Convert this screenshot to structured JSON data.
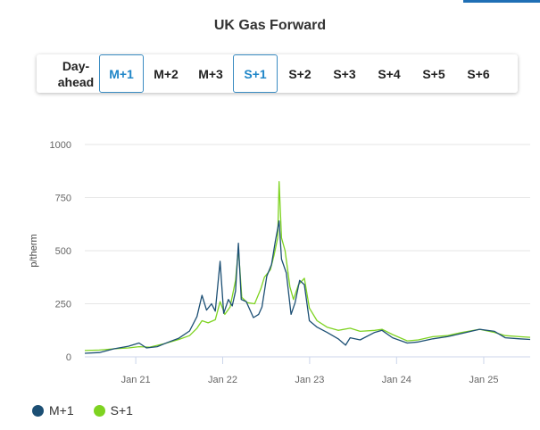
{
  "title": "UK Gas Forward",
  "tabs": [
    {
      "id": "day",
      "label": "Day-ahead",
      "active": false
    },
    {
      "id": "m1",
      "label": "M+1",
      "active": true
    },
    {
      "id": "m2",
      "label": "M+2",
      "active": false
    },
    {
      "id": "m3",
      "label": "M+3",
      "active": false
    },
    {
      "id": "s1",
      "label": "S+1",
      "active": true
    },
    {
      "id": "s2",
      "label": "S+2",
      "active": false
    },
    {
      "id": "s3",
      "label": "S+3",
      "active": false
    },
    {
      "id": "s4",
      "label": "S+4",
      "active": false
    },
    {
      "id": "s5",
      "label": "S+5",
      "active": false
    },
    {
      "id": "s6",
      "label": "S+6",
      "active": false
    }
  ],
  "colors": {
    "accent": "#1f86c8",
    "m1": "#1c4f74",
    "s1": "#7ed321"
  },
  "chart_data": {
    "type": "line",
    "title": "UK Gas Forward",
    "ylabel": "p/therm",
    "xlabel": "",
    "ylim": [
      0,
      1000
    ],
    "yticks": [
      0,
      250,
      500,
      750,
      1000
    ],
    "xlim": [
      "2020-06-01",
      "2025-07-15"
    ],
    "xticks": [
      {
        "date": "2021-01-01",
        "label": "Jan 21"
      },
      {
        "date": "2022-01-01",
        "label": "Jan 22"
      },
      {
        "date": "2023-01-01",
        "label": "Jan 23"
      },
      {
        "date": "2024-01-01",
        "label": "Jan 24"
      },
      {
        "date": "2025-01-01",
        "label": "Jan 25"
      }
    ],
    "grid": true,
    "legend": "bottom-left",
    "series": [
      {
        "name": "M+1",
        "color": "#1c4f74",
        "points": [
          [
            "2020-06-01",
            17
          ],
          [
            "2020-08-01",
            20
          ],
          [
            "2020-10-01",
            38
          ],
          [
            "2020-12-01",
            50
          ],
          [
            "2021-01-15",
            65
          ],
          [
            "2021-02-15",
            42
          ],
          [
            "2021-04-01",
            48
          ],
          [
            "2021-05-15",
            68
          ],
          [
            "2021-07-01",
            88
          ],
          [
            "2021-08-15",
            122
          ],
          [
            "2021-09-15",
            190
          ],
          [
            "2021-10-06",
            290
          ],
          [
            "2021-10-25",
            220
          ],
          [
            "2021-11-15",
            250
          ],
          [
            "2021-12-01",
            215
          ],
          [
            "2021-12-21",
            450
          ],
          [
            "2022-01-05",
            205
          ],
          [
            "2022-01-25",
            270
          ],
          [
            "2022-02-10",
            240
          ],
          [
            "2022-02-24",
            310
          ],
          [
            "2022-03-08",
            535
          ],
          [
            "2022-03-20",
            270
          ],
          [
            "2022-04-10",
            260
          ],
          [
            "2022-05-10",
            185
          ],
          [
            "2022-06-01",
            200
          ],
          [
            "2022-06-15",
            235
          ],
          [
            "2022-07-05",
            380
          ],
          [
            "2022-07-25",
            435
          ],
          [
            "2022-08-10",
            545
          ],
          [
            "2022-08-26",
            640
          ],
          [
            "2022-09-05",
            460
          ],
          [
            "2022-09-25",
            395
          ],
          [
            "2022-10-15",
            200
          ],
          [
            "2022-11-01",
            255
          ],
          [
            "2022-11-20",
            360
          ],
          [
            "2022-12-10",
            340
          ],
          [
            "2022-12-31",
            170
          ],
          [
            "2023-02-01",
            140
          ],
          [
            "2023-03-15",
            115
          ],
          [
            "2023-05-01",
            85
          ],
          [
            "2023-06-01",
            55
          ],
          [
            "2023-06-20",
            90
          ],
          [
            "2023-08-01",
            80
          ],
          [
            "2023-10-01",
            115
          ],
          [
            "2023-11-01",
            125
          ],
          [
            "2023-12-15",
            90
          ],
          [
            "2024-02-15",
            65
          ],
          [
            "2024-04-01",
            70
          ],
          [
            "2024-06-01",
            85
          ],
          [
            "2024-08-01",
            95
          ],
          [
            "2024-10-01",
            110
          ],
          [
            "2024-12-15",
            130
          ],
          [
            "2025-02-15",
            120
          ],
          [
            "2025-04-01",
            90
          ],
          [
            "2025-06-01",
            85
          ],
          [
            "2025-07-15",
            82
          ]
        ]
      },
      {
        "name": "S+1",
        "color": "#7ed321",
        "points": [
          [
            "2020-06-01",
            30
          ],
          [
            "2020-08-01",
            32
          ],
          [
            "2020-10-01",
            38
          ],
          [
            "2020-12-01",
            42
          ],
          [
            "2021-01-15",
            48
          ],
          [
            "2021-03-01",
            46
          ],
          [
            "2021-05-01",
            62
          ],
          [
            "2021-07-01",
            82
          ],
          [
            "2021-08-15",
            100
          ],
          [
            "2021-09-15",
            135
          ],
          [
            "2021-10-06",
            170
          ],
          [
            "2021-11-01",
            160
          ],
          [
            "2021-12-01",
            175
          ],
          [
            "2021-12-21",
            260
          ],
          [
            "2022-01-10",
            200
          ],
          [
            "2022-02-01",
            235
          ],
          [
            "2022-02-24",
            360
          ],
          [
            "2022-03-08",
            510
          ],
          [
            "2022-03-22",
            280
          ],
          [
            "2022-04-15",
            255
          ],
          [
            "2022-05-15",
            250
          ],
          [
            "2022-06-10",
            320
          ],
          [
            "2022-06-25",
            375
          ],
          [
            "2022-07-20",
            410
          ],
          [
            "2022-08-05",
            480
          ],
          [
            "2022-08-20",
            560
          ],
          [
            "2022-08-26",
            825
          ],
          [
            "2022-09-05",
            560
          ],
          [
            "2022-09-20",
            500
          ],
          [
            "2022-10-10",
            330
          ],
          [
            "2022-10-25",
            270
          ],
          [
            "2022-11-15",
            340
          ],
          [
            "2022-12-10",
            370
          ],
          [
            "2022-12-31",
            230
          ],
          [
            "2023-02-01",
            170
          ],
          [
            "2023-03-15",
            140
          ],
          [
            "2023-05-01",
            125
          ],
          [
            "2023-06-20",
            135
          ],
          [
            "2023-08-01",
            120
          ],
          [
            "2023-10-01",
            125
          ],
          [
            "2023-11-01",
            130
          ],
          [
            "2023-12-15",
            105
          ],
          [
            "2024-02-15",
            75
          ],
          [
            "2024-04-01",
            80
          ],
          [
            "2024-06-01",
            95
          ],
          [
            "2024-08-01",
            100
          ],
          [
            "2024-10-01",
            115
          ],
          [
            "2024-12-15",
            130
          ],
          [
            "2025-02-15",
            115
          ],
          [
            "2025-04-01",
            100
          ],
          [
            "2025-06-01",
            95
          ],
          [
            "2025-07-15",
            92
          ]
        ]
      }
    ]
  }
}
